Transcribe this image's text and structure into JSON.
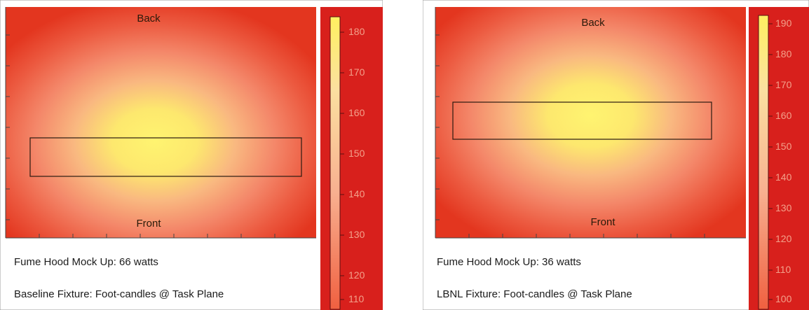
{
  "colors": {
    "edge": "#e0341e",
    "hot": "#fff173",
    "bar_bg": "#d81e1e",
    "outline": "#2a1a10"
  },
  "chart_data": [
    {
      "type": "heatmap",
      "labels": {
        "top": "Back",
        "bottom": "Front"
      },
      "caption_line1": "Fume Hood Mock Up:  66 watts",
      "caption_line2": "Baseline Fixture:  Foot-candles @ Task Plane",
      "colorbar_ticks": [
        "180",
        "170",
        "160",
        "150",
        "140",
        "130",
        "120",
        "110"
      ],
      "colorbar_range": [
        110,
        180
      ],
      "task_area_box": true
    },
    {
      "type": "heatmap",
      "labels": {
        "top": "Back",
        "bottom": "Front"
      },
      "caption_line1": "Fume Hood Mock Up:  36 watts",
      "caption_line2": "LBNL Fixture:  Foot-candles @ Task Plane",
      "colorbar_ticks": [
        "190",
        "180",
        "170",
        "160",
        "150",
        "140",
        "130",
        "120",
        "110",
        "100"
      ],
      "colorbar_range": [
        100,
        190
      ],
      "task_area_box": true
    }
  ]
}
